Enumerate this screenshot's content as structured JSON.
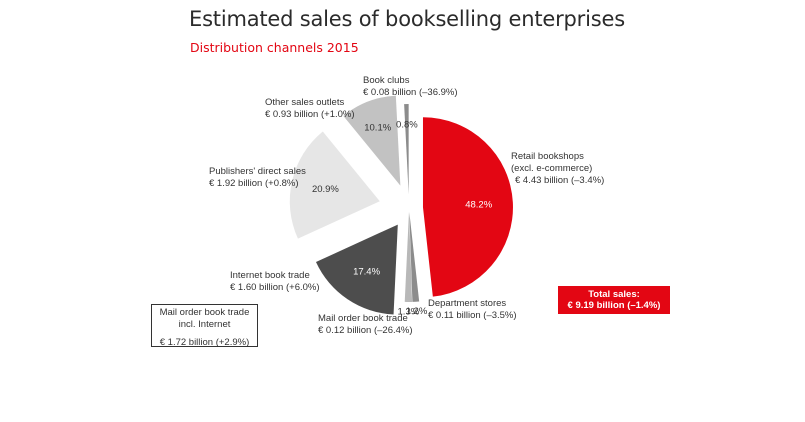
{
  "colors": {
    "accent": "#e30613",
    "retail": "#e30613",
    "department": "#8c8c8c",
    "mailorder": "#b8b8b8",
    "internet": "#4d4d4d",
    "publishers": "#e6e6e6",
    "other": "#c2c2c2",
    "bookclubs": "#8c8c8c"
  },
  "chart_data": {
    "type": "pie",
    "title": "Estimated sales of bookselling enterprises",
    "subtitle": "Distribution channels 2015",
    "slices": [
      {
        "key": "retail",
        "label": "Retail bookshops\n(excl. e-commerce)",
        "value_text": "€ 4.43 billion (–3.4%)",
        "value": 48.2,
        "pct_label": "48.2%"
      },
      {
        "key": "department",
        "label": "Department stores",
        "value_text": "€ 0.11 billion (–3.5%)",
        "value": 1.2,
        "pct_label": "1.2%"
      },
      {
        "key": "mailorder",
        "label": "Mail order book trade",
        "value_text": "€ 0.12 billion (–26.4%)",
        "value": 1.3,
        "pct_label": "1.3%"
      },
      {
        "key": "internet",
        "label": "Internet book trade",
        "value_text": "€ 1.60 billion (+6.0%)",
        "value": 17.4,
        "pct_label": "17.4%"
      },
      {
        "key": "publishers",
        "label": "Publishers' direct sales",
        "value_text": "€ 1.92 billion (+0.8%)",
        "value": 20.9,
        "pct_label": "20.9%"
      },
      {
        "key": "other",
        "label": "Other sales outlets",
        "value_text": "€ 0.93 billion (+1.0%)",
        "value": 10.1,
        "pct_label": "10.1%"
      },
      {
        "key": "bookclubs",
        "label": "Book clubs",
        "value_text": "€ 0.08 billion (–36.9%)",
        "value": 0.8,
        "pct_label": "0.8%"
      }
    ],
    "mail_order_box": {
      "label": "Mail order book trade\nincl. Internet",
      "value_text": "€ 1.72 billion (+2.9%)"
    },
    "total": {
      "label": "Total sales:",
      "value_text": "€ 9.19 billion (–1.4%)"
    }
  }
}
